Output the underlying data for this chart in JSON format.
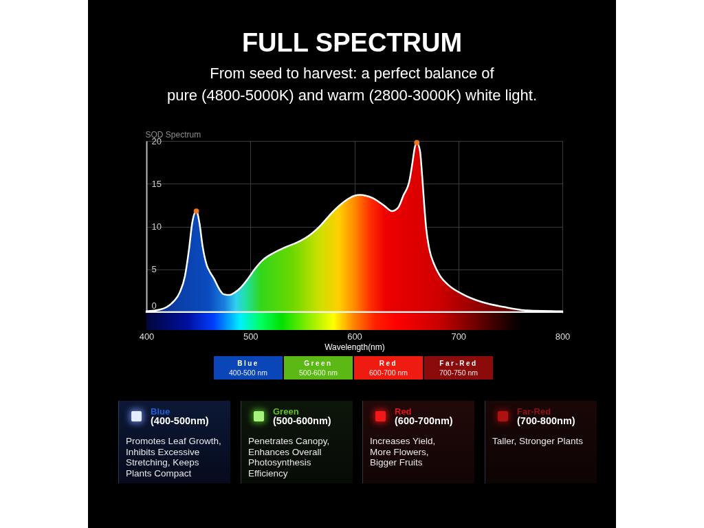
{
  "chart_data": {
    "type": "area",
    "title": "FULL SPECTRUM",
    "subtitle": "From seed to harvest: a perfect balance of\npure (4800-5000K) and warm (2800-3000K) white light.",
    "xlabel": "Wavelength(nm)",
    "ylabel": "SQD Spectrum",
    "xlim": [
      400,
      800
    ],
    "xticks": [
      400,
      500,
      600,
      700,
      800
    ],
    "ylim": [
      0,
      20
    ],
    "yticks": [
      0,
      5,
      10,
      15,
      20
    ],
    "grid": true,
    "series": [
      {
        "color": "#ffffff",
        "x": [
          400,
          413,
          424,
          432,
          437,
          441,
          444,
          448,
          451,
          454,
          458,
          461,
          465,
          470,
          474,
          480,
          485,
          491,
          497,
          504,
          512,
          522,
          532,
          546,
          557,
          568,
          579,
          590,
          600,
          605,
          618,
          629,
          636,
          642,
          647,
          653,
          656,
          658,
          660,
          663,
          665,
          667,
          669,
          672,
          677,
          682,
          691,
          704,
          722,
          744,
          766,
          800
        ],
        "values": [
          0.1,
          0.3,
          1.0,
          2.3,
          4.2,
          7.4,
          10.4,
          11.8,
          10.4,
          7.7,
          5.5,
          4.7,
          3.9,
          2.7,
          2.1,
          2.0,
          2.3,
          2.9,
          3.8,
          5.0,
          6.1,
          6.9,
          7.5,
          8.2,
          9.0,
          10.2,
          11.7,
          12.9,
          13.6,
          13.7,
          13.3,
          12.4,
          11.8,
          12.2,
          13.6,
          15.4,
          17.6,
          19.2,
          19.8,
          18.9,
          16.2,
          12.8,
          9.8,
          7.4,
          5.5,
          4.3,
          3.1,
          2.1,
          1.2,
          0.6,
          0.2,
          0.1
        ]
      },
      {
        "type": "scatter",
        "color": "#f07820",
        "marker": "circle",
        "x": [
          448,
          660
        ],
        "values": [
          11.8,
          19.8
        ]
      }
    ],
    "annotations": [
      "Blue",
      "400-500 nm",
      "Green",
      "500-600 nm",
      "Red",
      "600-700 nm",
      "Far-Red",
      "700-750 nm",
      "Blue",
      "(400-500nm)",
      "Promotes Leaf Growth,\nInhibits Excessive\nStretching, Keeps\nPlants Compact",
      "Green",
      "(500-600nm)",
      "Penetrates Canopy,\nEnhances Overall\nPhotosynthesis\nEfficiency",
      "Red",
      "(600-700nm)",
      "Increases Yield,\nMore Flowers,\nBigger Fruits",
      "Far-Red",
      "(700-800nm)",
      "Taller, Stronger Plants"
    ]
  }
}
